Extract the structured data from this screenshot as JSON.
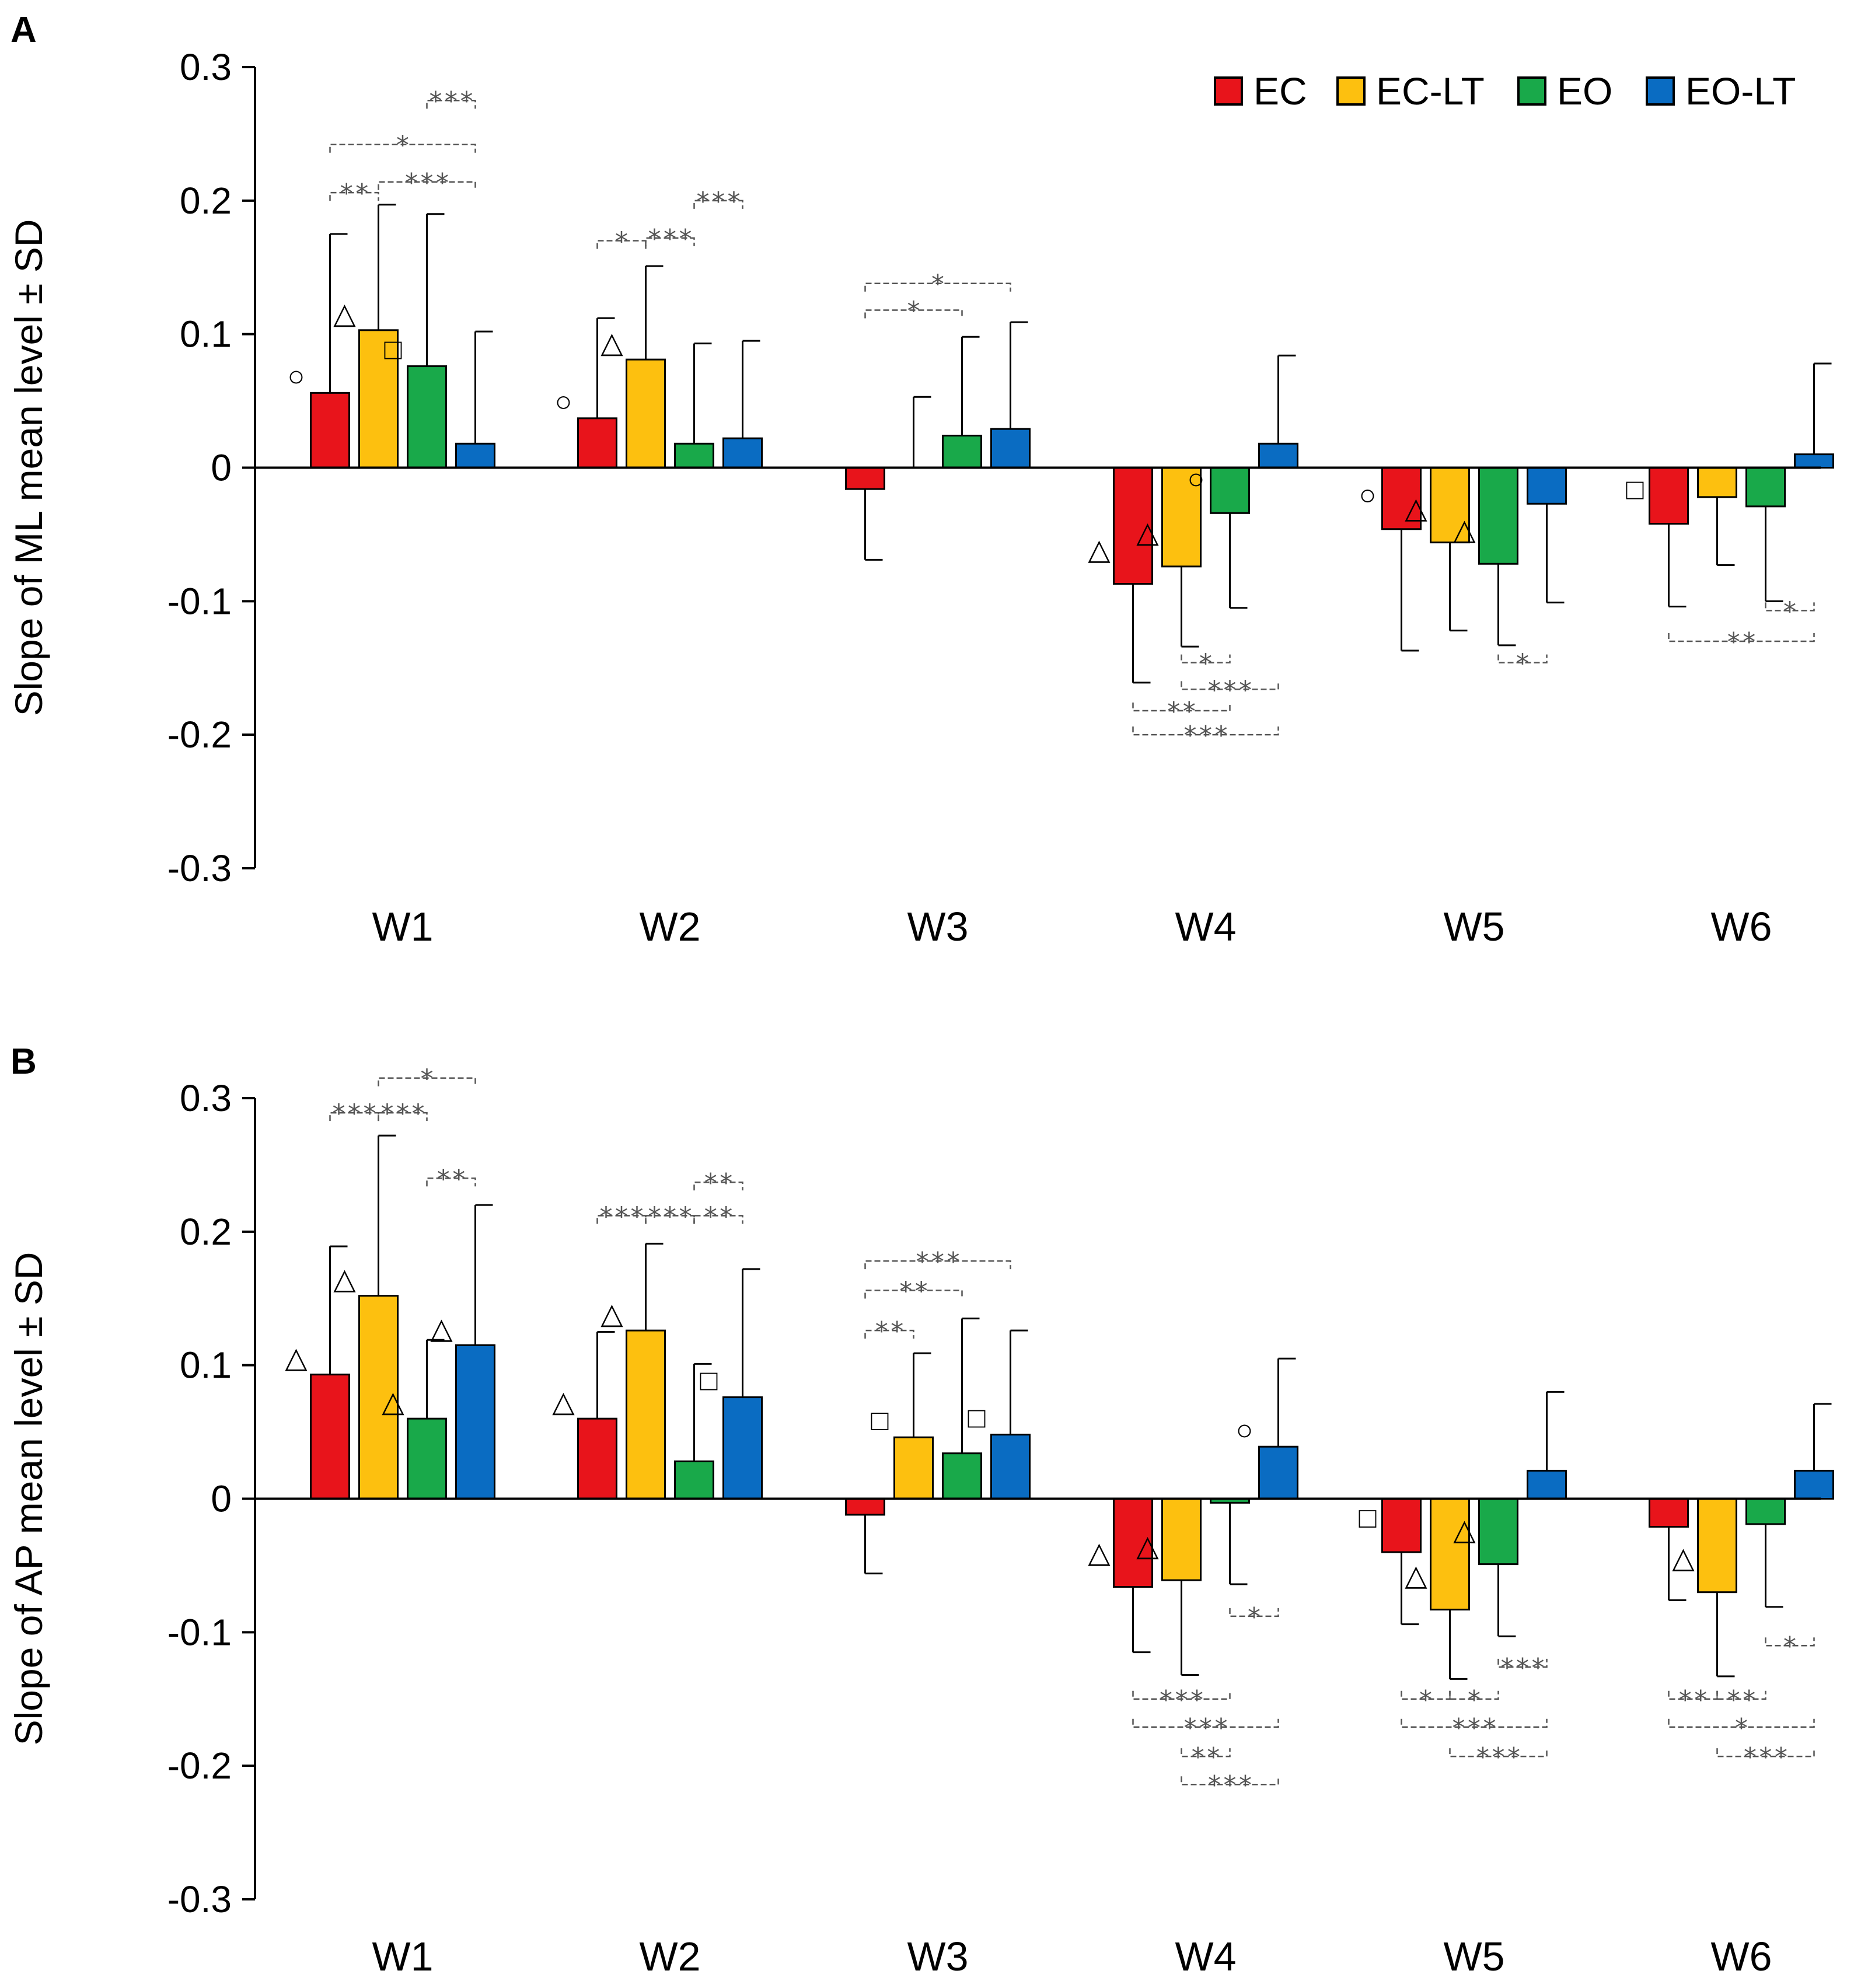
{
  "chart_data": [
    {
      "panel": "A",
      "type": "bar",
      "ylabel": "Slope of ML  mean level ± SD",
      "ylim": [
        -0.3,
        0.3
      ],
      "yticks": [
        "0.3",
        "0.2",
        "0.1",
        "0",
        "-0.1",
        "-0.2",
        "-0.3"
      ],
      "categories": [
        "W1",
        "W2",
        "W3",
        "W4",
        "W5",
        "W6"
      ],
      "series": [
        {
          "name": "EC",
          "values": [
            0.056,
            0.037,
            -0.016,
            -0.087,
            -0.046,
            -0.042
          ],
          "sd": [
            0.119,
            0.075,
            0.053,
            0.074,
            0.091,
            0.062
          ]
        },
        {
          "name": "EC-LT",
          "values": [
            0.103,
            0.081,
            0.0,
            -0.074,
            -0.056,
            -0.022
          ],
          "sd": [
            0.094,
            0.07,
            0.053,
            0.06,
            0.066,
            0.051
          ]
        },
        {
          "name": "EO",
          "values": [
            0.076,
            0.018,
            0.024,
            -0.034,
            -0.072,
            -0.029
          ],
          "sd": [
            0.114,
            0.075,
            0.074,
            0.071,
            0.061,
            0.071
          ]
        },
        {
          "name": "EO-LT",
          "values": [
            0.018,
            0.022,
            0.029,
            0.018,
            -0.027,
            0.01
          ],
          "sd": [
            0.084,
            0.073,
            0.08,
            0.066,
            0.074,
            0.068
          ]
        }
      ],
      "markers": [
        {
          "category": "W1",
          "series": "EC",
          "symbol": "○"
        },
        {
          "category": "W1",
          "series": "EC-LT",
          "symbol": "△"
        },
        {
          "category": "W1",
          "series": "EO",
          "symbol": "□"
        },
        {
          "category": "W2",
          "series": "EC",
          "symbol": "○"
        },
        {
          "category": "W2",
          "series": "EC-LT",
          "symbol": "△"
        },
        {
          "category": "W4",
          "series": "EC",
          "symbol": "△"
        },
        {
          "category": "W4",
          "series": "EC-LT",
          "symbol": "△"
        },
        {
          "category": "W4",
          "series": "EO",
          "symbol": "○"
        },
        {
          "category": "W5",
          "series": "EC",
          "symbol": "○"
        },
        {
          "category": "W5",
          "series": "EC-LT",
          "symbol": "△"
        },
        {
          "category": "W5",
          "series": "EO",
          "symbol": "△"
        },
        {
          "category": "W6",
          "series": "EC",
          "symbol": "□"
        }
      ],
      "significance": [
        {
          "category": "W1",
          "from": "EO",
          "to": "EO-LT",
          "label": "***",
          "y": 0.275
        },
        {
          "category": "W1",
          "from": "EC",
          "to": "EO-LT",
          "label": "*",
          "y": 0.242
        },
        {
          "category": "W1",
          "from": "EC",
          "to": "EC-LT",
          "label": "**",
          "y": 0.206
        },
        {
          "category": "W1",
          "from": "EC-LT",
          "to": "EO-LT",
          "label": "***",
          "y": 0.214
        },
        {
          "category": "W2",
          "from": "EO-LT",
          "to": "EO",
          "label": "***",
          "y": 0.2
        },
        {
          "category": "W2",
          "from": "EC",
          "to": "EC-LT",
          "label": "*",
          "y": 0.17
        },
        {
          "category": "W2",
          "from": "EC-LT",
          "to": "EO",
          "label": "***",
          "y": 0.172
        },
        {
          "category": "W3",
          "from": "EC",
          "to": "EO-LT",
          "label": "*",
          "y": 0.138
        },
        {
          "category": "W3",
          "from": "EC",
          "to": "EO",
          "label": "*",
          "y": 0.118
        },
        {
          "category": "W4",
          "from": "EC-LT",
          "to": "EO",
          "label": "*",
          "y": -0.146
        },
        {
          "category": "W4",
          "from": "EC-LT",
          "to": "EO-LT",
          "label": "***",
          "y": -0.166
        },
        {
          "category": "W4",
          "from": "EC",
          "to": "EO",
          "label": "**",
          "y": -0.182
        },
        {
          "category": "W4",
          "from": "EC",
          "to": "EO-LT",
          "label": "***",
          "y": -0.2
        },
        {
          "category": "W5",
          "from": "EO",
          "to": "EO-LT",
          "label": "*",
          "y": -0.146
        },
        {
          "category": "W6",
          "from": "EO",
          "to": "EO-LT",
          "label": "*",
          "y": -0.107
        },
        {
          "category": "W6",
          "from": "EC",
          "to": "EO-LT",
          "label": "**",
          "y": -0.13
        }
      ]
    },
    {
      "panel": "B",
      "type": "bar",
      "ylabel": "Slope of AP  mean level ± SD",
      "ylim": [
        -0.3,
        0.3
      ],
      "yticks": [
        "0.3",
        "0.2",
        "0.1",
        "0",
        "-0.1",
        "-0.2",
        "-0.3"
      ],
      "categories": [
        "W1",
        "W2",
        "W3",
        "W4",
        "W5",
        "W6"
      ],
      "series": [
        {
          "name": "EC",
          "values": [
            0.093,
            0.06,
            -0.012,
            -0.066,
            -0.04,
            -0.021
          ],
          "sd": [
            0.096,
            0.065,
            0.044,
            0.049,
            0.054,
            0.055
          ]
        },
        {
          "name": "EC-LT",
          "values": [
            0.152,
            0.126,
            0.046,
            -0.061,
            -0.083,
            -0.07
          ],
          "sd": [
            0.12,
            0.065,
            0.063,
            0.071,
            0.052,
            0.063
          ]
        },
        {
          "name": "EO",
          "values": [
            0.06,
            0.028,
            0.034,
            -0.003,
            -0.049,
            -0.019
          ],
          "sd": [
            0.059,
            0.073,
            0.101,
            0.061,
            0.054,
            0.062
          ]
        },
        {
          "name": "EO-LT",
          "values": [
            0.115,
            0.076,
            0.048,
            0.039,
            0.021,
            0.021
          ],
          "sd": [
            0.105,
            0.096,
            0.078,
            0.066,
            0.059,
            0.05
          ]
        }
      ],
      "markers": [
        {
          "category": "W1",
          "series": "EC",
          "symbol": "△"
        },
        {
          "category": "W1",
          "series": "EC-LT",
          "symbol": "△"
        },
        {
          "category": "W1",
          "series": "EO",
          "symbol": "△"
        },
        {
          "category": "W1",
          "series": "EO-LT",
          "symbol": "△"
        },
        {
          "category": "W2",
          "series": "EC",
          "symbol": "△"
        },
        {
          "category": "W2",
          "series": "EC-LT",
          "symbol": "△"
        },
        {
          "category": "W2",
          "series": "EO-LT",
          "symbol": "□"
        },
        {
          "category": "W3",
          "series": "EC-LT",
          "symbol": "□"
        },
        {
          "category": "W3",
          "series": "EO-LT",
          "symbol": "□"
        },
        {
          "category": "W4",
          "series": "EC",
          "symbol": "△"
        },
        {
          "category": "W4",
          "series": "EC-LT",
          "symbol": "△"
        },
        {
          "category": "W4",
          "series": "EO-LT",
          "symbol": "○"
        },
        {
          "category": "W5",
          "series": "EC",
          "symbol": "□"
        },
        {
          "category": "W5",
          "series": "EC-LT",
          "symbol": "△"
        },
        {
          "category": "W5",
          "series": "EO",
          "symbol": "△"
        },
        {
          "category": "W6",
          "series": "EC-LT",
          "symbol": "△"
        }
      ],
      "significance": [
        {
          "category": "W1",
          "from": "EC-LT",
          "to": "EO-LT",
          "label": "*",
          "y": 0.315
        },
        {
          "category": "W1",
          "from": "EC",
          "to": "EC-LT",
          "label": "***",
          "y": 0.289
        },
        {
          "category": "W1",
          "from": "EC-LT",
          "to": "EO",
          "label": "***",
          "y": 0.289
        },
        {
          "category": "W1",
          "from": "EO",
          "to": "EO-LT",
          "label": "**",
          "y": 0.24
        },
        {
          "category": "W2",
          "from": "EO",
          "to": "EO-LT",
          "label": "**",
          "y": 0.237
        },
        {
          "category": "W2",
          "from": "EC",
          "to": "EC-LT",
          "label": "***",
          "y": 0.212
        },
        {
          "category": "W2",
          "from": "EC-LT",
          "to": "EO",
          "label": "***",
          "y": 0.212
        },
        {
          "category": "W2",
          "from": "EO",
          "to": "EO-LT",
          "label": "**",
          "y": 0.212
        },
        {
          "category": "W3",
          "from": "EC",
          "to": "EO-LT",
          "label": "***",
          "y": 0.178
        },
        {
          "category": "W3",
          "from": "EC",
          "to": "EO",
          "label": "**",
          "y": 0.156
        },
        {
          "category": "W3",
          "from": "EC",
          "to": "EC-LT",
          "label": "**",
          "y": 0.126
        },
        {
          "category": "W4",
          "from": "EO",
          "to": "EO-LT",
          "label": "*",
          "y": -0.088
        },
        {
          "category": "W4",
          "from": "EC",
          "to": "EO",
          "label": "***",
          "y": -0.15
        },
        {
          "category": "W4",
          "from": "EC",
          "to": "EO-LT",
          "label": "***",
          "y": -0.171
        },
        {
          "category": "W4",
          "from": "EC-LT",
          "to": "EO",
          "label": "**",
          "y": -0.193
        },
        {
          "category": "W4",
          "from": "EC-LT",
          "to": "EO-LT",
          "label": "***",
          "y": -0.214
        },
        {
          "category": "W5",
          "from": "EO",
          "to": "EO-LT",
          "label": "***",
          "y": -0.126
        },
        {
          "category": "W5",
          "from": "EC",
          "to": "EC-LT",
          "label": "*",
          "y": -0.15
        },
        {
          "category": "W5",
          "from": "EC-LT",
          "to": "EO",
          "label": "*",
          "y": -0.15
        },
        {
          "category": "W5",
          "from": "EC",
          "to": "EO-LT",
          "label": "***",
          "y": -0.171
        },
        {
          "category": "W5",
          "from": "EC-LT",
          "to": "EO-LT",
          "label": "***",
          "y": -0.193
        },
        {
          "category": "W6",
          "from": "EO",
          "to": "EO-LT",
          "label": "*",
          "y": -0.11
        },
        {
          "category": "W6",
          "from": "EC",
          "to": "EC-LT",
          "label": "**",
          "y": -0.15
        },
        {
          "category": "W6",
          "from": "EC-LT",
          "to": "EO",
          "label": "**",
          "y": -0.15
        },
        {
          "category": "W6",
          "from": "EC",
          "to": "EO-LT",
          "label": "*",
          "y": -0.171
        },
        {
          "category": "W6",
          "from": "EC-LT",
          "to": "EO-LT",
          "label": "***",
          "y": -0.193
        }
      ]
    }
  ],
  "legend": [
    {
      "name": "EC",
      "color": "#e8141b"
    },
    {
      "name": "EC-LT",
      "color": "#fdc00f"
    },
    {
      "name": "EO",
      "color": "#19a94a"
    },
    {
      "name": "EO-LT",
      "color": "#0a6cc2"
    }
  ]
}
